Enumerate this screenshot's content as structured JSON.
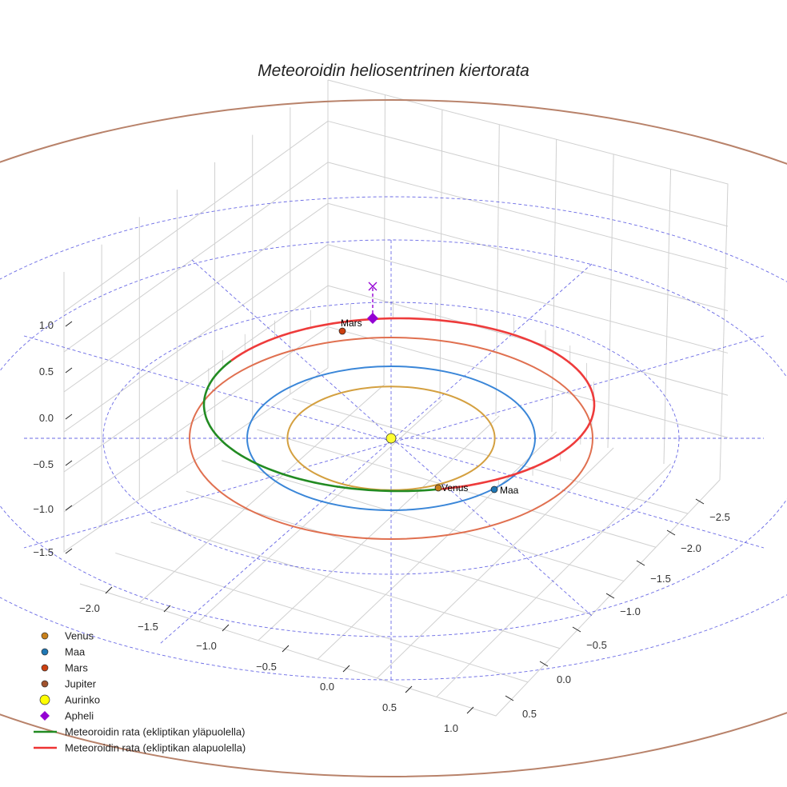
{
  "chart_data": {
    "type": "line3d",
    "title": "Meteoroidin heliosentrinen kiertorata",
    "axes": {
      "x_ticks": [
        "−2.5",
        "−2.0",
        "−1.5",
        "−1.0",
        "−0.5",
        "0.0",
        "0.5"
      ],
      "y_ticks": [
        "−2.0",
        "−1.5",
        "−1.0",
        "−0.5",
        "0.0",
        "0.5",
        "1.0"
      ],
      "z_ticks": [
        "1.0",
        "0.5",
        "0.0",
        "−0.5",
        "−1.0",
        "−1.5"
      ]
    },
    "orbits": [
      {
        "name": "Venus",
        "radius_au": 0.72,
        "color": "#d4a040"
      },
      {
        "name": "Maa",
        "radius_au": 1.0,
        "color": "#3a86d8"
      },
      {
        "name": "Mars",
        "radius_au": 1.4,
        "color": "#e07050"
      },
      {
        "name": "Jupiter",
        "radius_au": 4.7,
        "color": "#b8826a"
      }
    ],
    "planet_labels": {
      "venus": "Venus",
      "maa": "Maa",
      "mars": "Mars"
    },
    "legend": [
      {
        "label": "Venus",
        "marker": "circle",
        "color": "#c8801a"
      },
      {
        "label": "Maa",
        "marker": "circle",
        "color": "#1f77b4"
      },
      {
        "label": "Mars",
        "marker": "circle",
        "color": "#cc4010"
      },
      {
        "label": "Jupiter",
        "marker": "circle",
        "color": "#a0522d"
      },
      {
        "label": "Aurinko",
        "marker": "circle-large",
        "color": "#ffff00"
      },
      {
        "label": "Apheli",
        "marker": "diamond",
        "color": "#9400d3"
      },
      {
        "label": "Meteoroidin rata (ekliptikan yläpuolella)",
        "marker": "line",
        "color": "#228b22"
      },
      {
        "label": "Meteoroidin rata (ekliptikan alapuolella)",
        "marker": "line",
        "color": "#ee3333"
      }
    ],
    "legend_position": "lower-left"
  }
}
